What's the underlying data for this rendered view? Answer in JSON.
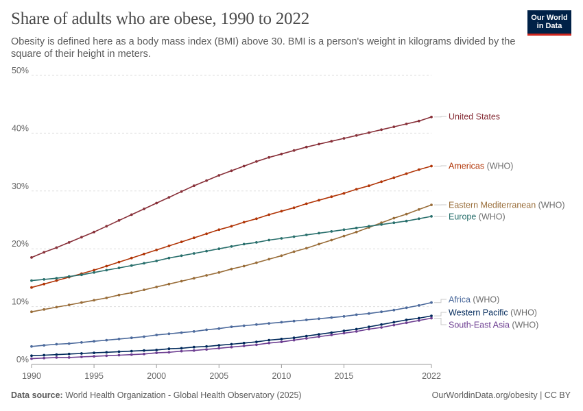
{
  "header": {
    "title": "Share of adults who are obese, 1990 to 2022",
    "subtitle": "Obesity is defined here as a body mass index (BMI) above 30. BMI is a person's weight in kilograms divided by the square of their height in meters."
  },
  "logo": {
    "line1": "Our World",
    "line2": "in Data"
  },
  "footer": {
    "source_label": "Data source:",
    "source_text": "World Health Organization - Global Health Observatory (2025)",
    "right_text": "OurWorldinData.org/obesity | CC BY"
  },
  "chart_data": {
    "type": "line",
    "title": "Share of adults who are obese, 1990 to 2022",
    "x_ticks": [
      "1990",
      "1995",
      "2000",
      "2005",
      "2010",
      "2015",
      "2022"
    ],
    "x_tick_values": [
      1990,
      1995,
      2000,
      2005,
      2010,
      2015,
      2022
    ],
    "y_ticks": [
      "0%",
      "10%",
      "20%",
      "30%",
      "40%",
      "50%"
    ],
    "y_tick_values": [
      0,
      10,
      20,
      30,
      40,
      50
    ],
    "xlim": [
      1990,
      2022
    ],
    "ylim": [
      0,
      50
    ],
    "grid": "horizontal-dashed",
    "legend": "direct-labels-right",
    "series": [
      {
        "name": "United States",
        "suffix": "",
        "color": "#883039",
        "values": [
          18.5,
          19.4,
          20.2,
          21.1,
          22.0,
          22.9,
          23.9,
          24.9,
          25.9,
          26.9,
          27.9,
          28.9,
          29.9,
          30.9,
          31.8,
          32.7,
          33.5,
          34.3,
          35.1,
          35.8,
          36.4,
          37.0,
          37.6,
          38.1,
          38.6,
          39.1,
          39.6,
          40.1,
          40.6,
          41.1,
          41.6,
          42.1,
          42.8
        ]
      },
      {
        "name": "Americas",
        "suffix": "(WHO)",
        "color": "#b13507",
        "values": [
          13.3,
          13.9,
          14.5,
          15.1,
          15.7,
          16.3,
          17.0,
          17.7,
          18.4,
          19.1,
          19.8,
          20.5,
          21.2,
          21.9,
          22.6,
          23.3,
          23.9,
          24.6,
          25.2,
          25.9,
          26.5,
          27.1,
          27.8,
          28.4,
          29.0,
          29.6,
          30.3,
          30.9,
          31.6,
          32.3,
          33.0,
          33.7,
          34.3
        ]
      },
      {
        "name": "Eastern Mediterranean",
        "suffix": "(WHO)",
        "color": "#996d39",
        "values": [
          9.1,
          9.5,
          9.9,
          10.3,
          10.7,
          11.1,
          11.5,
          12.0,
          12.4,
          12.9,
          13.4,
          13.9,
          14.4,
          14.9,
          15.4,
          15.9,
          16.5,
          17.0,
          17.6,
          18.2,
          18.8,
          19.5,
          20.1,
          20.8,
          21.5,
          22.2,
          22.9,
          23.7,
          24.5,
          25.3,
          26.0,
          26.8,
          27.6
        ]
      },
      {
        "name": "Europe",
        "suffix": "(WHO)",
        "color": "#286f6c",
        "values": [
          14.5,
          14.7,
          14.9,
          15.2,
          15.5,
          15.9,
          16.3,
          16.7,
          17.1,
          17.5,
          17.9,
          18.4,
          18.8,
          19.2,
          19.6,
          20.0,
          20.4,
          20.8,
          21.1,
          21.5,
          21.8,
          22.1,
          22.4,
          22.7,
          23.0,
          23.3,
          23.6,
          23.9,
          24.2,
          24.5,
          24.8,
          25.2,
          25.6
        ]
      },
      {
        "name": "Africa",
        "suffix": "(WHO)",
        "color": "#4c6a9c",
        "values": [
          3.1,
          3.3,
          3.5,
          3.6,
          3.8,
          4.0,
          4.2,
          4.4,
          4.6,
          4.8,
          5.1,
          5.3,
          5.5,
          5.7,
          6.0,
          6.2,
          6.5,
          6.7,
          6.9,
          7.1,
          7.3,
          7.5,
          7.7,
          7.9,
          8.1,
          8.3,
          8.6,
          8.8,
          9.1,
          9.4,
          9.8,
          10.2,
          10.7
        ]
      },
      {
        "name": "Western Pacific",
        "suffix": "(WHO)",
        "color": "#00295b",
        "values": [
          1.5,
          1.6,
          1.7,
          1.8,
          1.9,
          2.0,
          2.1,
          2.2,
          2.3,
          2.4,
          2.5,
          2.7,
          2.8,
          3.0,
          3.1,
          3.3,
          3.5,
          3.7,
          3.9,
          4.2,
          4.4,
          4.6,
          4.9,
          5.2,
          5.5,
          5.8,
          6.1,
          6.5,
          6.9,
          7.3,
          7.7,
          8.0,
          8.4
        ]
      },
      {
        "name": "South-East Asia",
        "suffix": "(WHO)",
        "color": "#6d3e91",
        "values": [
          1.0,
          1.1,
          1.2,
          1.2,
          1.3,
          1.4,
          1.5,
          1.6,
          1.7,
          1.8,
          2.0,
          2.1,
          2.3,
          2.4,
          2.6,
          2.8,
          3.0,
          3.2,
          3.4,
          3.7,
          3.9,
          4.2,
          4.5,
          4.8,
          5.1,
          5.4,
          5.7,
          6.1,
          6.4,
          6.8,
          7.2,
          7.6,
          8.0
        ]
      }
    ]
  }
}
